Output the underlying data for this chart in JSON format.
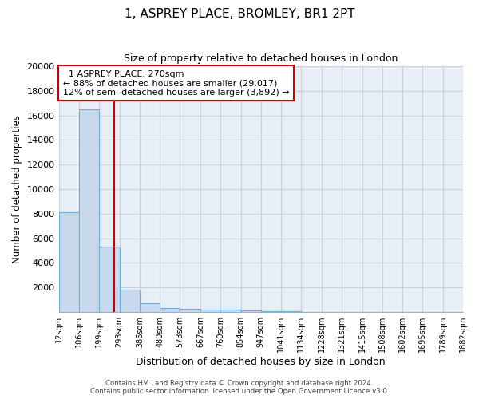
{
  "title": "1, ASPREY PLACE, BROMLEY, BR1 2PT",
  "subtitle": "Size of property relative to detached houses in London",
  "xlabel": "Distribution of detached houses by size in London",
  "ylabel": "Number of detached properties",
  "property_size": 270,
  "property_label": "1 ASPREY PLACE: 270sqm",
  "pct_smaller": 88,
  "n_smaller": 29017,
  "pct_larger": 12,
  "n_larger": 3892,
  "bin_edges": [
    12,
    106,
    199,
    293,
    386,
    480,
    573,
    667,
    760,
    854,
    947,
    1041,
    1134,
    1228,
    1321,
    1415,
    1508,
    1602,
    1695,
    1789,
    1882
  ],
  "bar_heights": [
    8100,
    16500,
    5300,
    1800,
    700,
    350,
    280,
    220,
    180,
    120,
    80,
    50,
    35,
    25,
    18,
    12,
    8,
    5,
    4,
    3
  ],
  "bar_color": "#c8d9ee",
  "bar_edge_color": "#6baed6",
  "vline_color": "#cc0000",
  "vline_x": 270,
  "annotation_box_color": "#cc0000",
  "ylim": [
    0,
    20000
  ],
  "yticks": [
    0,
    2000,
    4000,
    6000,
    8000,
    10000,
    12000,
    14000,
    16000,
    18000,
    20000
  ],
  "grid_color": "#c8d0dc",
  "background_color": "#e8eef5",
  "footer_line1": "Contains HM Land Registry data © Crown copyright and database right 2024.",
  "footer_line2": "Contains public sector information licensed under the Open Government Licence v3.0."
}
